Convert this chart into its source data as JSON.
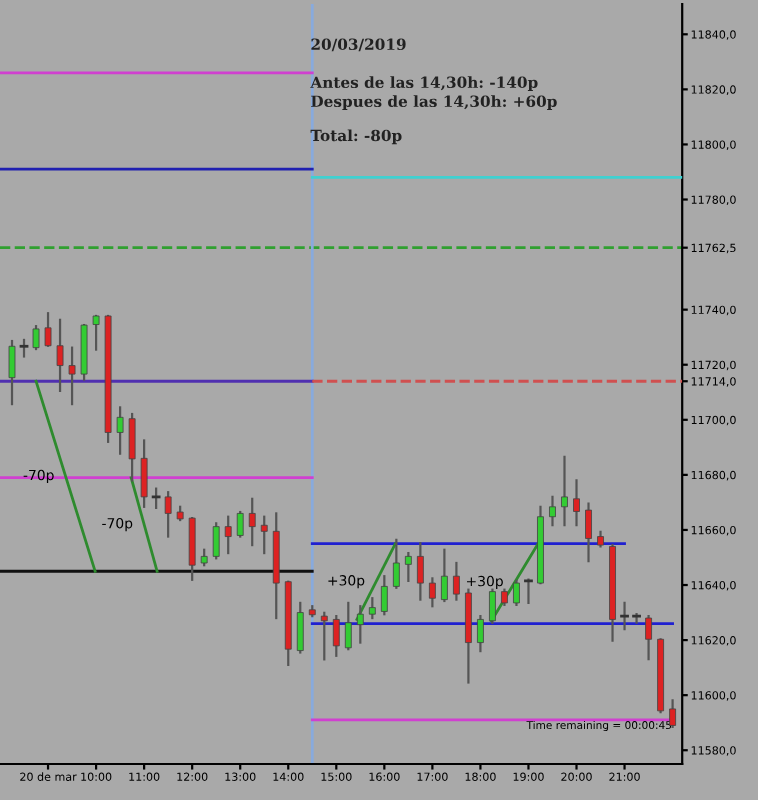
{
  "chart_data": {
    "type": "candlestick",
    "x": [
      8.25,
      8.5,
      8.75,
      9,
      9.25,
      9.5,
      9.75,
      10,
      10.25,
      10.5,
      10.75,
      11,
      11.25,
      11.5,
      11.75,
      12,
      12.25,
      12.5,
      12.75,
      13,
      13.25,
      13.5,
      13.75,
      14,
      14.25,
      14.5,
      14.75,
      15,
      15.25,
      15.5,
      15.75,
      16,
      16.25,
      16.5,
      16.75,
      17,
      17.25,
      17.5,
      17.75,
      18,
      18.25,
      18.5,
      18.75,
      19,
      19.25,
      19.5,
      19.75,
      20,
      20.25,
      20.5,
      20.75,
      21,
      21.25,
      21.5,
      21.75,
      22
    ],
    "ohlc": [
      [
        11715.3,
        11728.6,
        11705.7,
        11726.7
      ],
      [
        11726.7,
        11729,
        11723,
        11726.7
      ],
      [
        11726.2,
        11734,
        11725.7,
        11733
      ],
      [
        11733.4,
        11738.7,
        11726.9,
        11726.9
      ],
      [
        11726.9,
        11736.3,
        11710.5,
        11719.7
      ],
      [
        11719.7,
        11726.2,
        11705.7,
        11716.6
      ],
      [
        11716.6,
        11734.4,
        11714.6,
        11734.4
      ],
      [
        11734.6,
        11737.7,
        11725.5,
        11737.7
      ],
      [
        11737.7,
        11737.7,
        11692,
        11695.4
      ],
      [
        11695.4,
        11704.5,
        11687.7,
        11700.9
      ],
      [
        11700.4,
        11702.1,
        11678,
        11685.8
      ],
      [
        11686,
        11692.5,
        11668.4,
        11672
      ],
      [
        11672,
        11675,
        11668,
        11672
      ],
      [
        11672,
        11673.7,
        11657.6,
        11666
      ],
      [
        11666.5,
        11668.4,
        11663.6,
        11664
      ],
      [
        11664.3,
        11664.3,
        11641.9,
        11647.2
      ],
      [
        11648,
        11652.8,
        11647.2,
        11650.4
      ],
      [
        11650.4,
        11662.4,
        11649.7,
        11661.2
      ],
      [
        11661.2,
        11664.8,
        11651.6,
        11657.6
      ],
      [
        11658,
        11666.5,
        11657.6,
        11666
      ],
      [
        11666,
        11671.3,
        11654.5,
        11661.2
      ],
      [
        11661.7,
        11664.8,
        11651.6,
        11659.5
      ],
      [
        11659.5,
        11666,
        11628,
        11640.7
      ],
      [
        11641.2,
        11641.2,
        11611,
        11616.7
      ],
      [
        11616.2,
        11633.5,
        11615.5,
        11630
      ],
      [
        11631,
        11632.3,
        11628.7,
        11629.2
      ],
      [
        11628.7,
        11629.9,
        11613,
        11627
      ],
      [
        11627.5,
        11628.7,
        11614.3,
        11617.9
      ],
      [
        11617.2,
        11633.5,
        11616.7,
        11626.3
      ],
      [
        11625.6,
        11632.3,
        11619.1,
        11629.4
      ],
      [
        11629.4,
        11635.2,
        11628,
        11631.8
      ],
      [
        11630.4,
        11643.2,
        11629.4,
        11639.5
      ],
      [
        11639.5,
        11656.4,
        11639,
        11648
      ],
      [
        11647.5,
        11651.6,
        11641.5,
        11650.4
      ],
      [
        11650.4,
        11655.2,
        11634.7,
        11640.7
      ],
      [
        11640.7,
        11642.4,
        11632.3,
        11635.2
      ],
      [
        11634.7,
        11652.8,
        11634.2,
        11643.2
      ],
      [
        11643.2,
        11648,
        11634.7,
        11636.7
      ],
      [
        11637.1,
        11638.3,
        11604.6,
        11619.1
      ],
      [
        11619.1,
        11628.7,
        11616,
        11627.5
      ],
      [
        11627,
        11638.3,
        11626.3,
        11637.6
      ],
      [
        11637.6,
        11638.3,
        11632.8,
        11633.5
      ],
      [
        11633.5,
        11641.5,
        11632.8,
        11640.7
      ],
      [
        11641.5,
        11642,
        11633.5,
        11641.5
      ],
      [
        11640.7,
        11668.4,
        11640.7,
        11664.8
      ],
      [
        11664.8,
        11672,
        11661.7,
        11668.4
      ],
      [
        11668.4,
        11686.5,
        11661.7,
        11672
      ],
      [
        11671.3,
        11678,
        11661.7,
        11666.7
      ],
      [
        11667.2,
        11669.6,
        11648.7,
        11656.9
      ],
      [
        11657.6,
        11659.3,
        11654,
        11654.5
      ],
      [
        11654,
        11654.5,
        11619.8,
        11627.5
      ],
      [
        11628.7,
        11633.5,
        11624,
        11628.7
      ],
      [
        11628.7,
        11629.4,
        11626.3,
        11628.7
      ],
      [
        11628,
        11628.7,
        11613.1,
        11620.3
      ],
      [
        11620.3,
        11620.3,
        11593.8,
        11594.3
      ],
      [
        11595,
        11598.1,
        11588.5,
        11589
      ]
    ],
    "colors": [
      "#33cc33",
      "#333333",
      "#33cc33",
      "#dd2222",
      "#dd2222",
      "#dd2222",
      "#33cc33",
      "#33cc33",
      "#dd2222",
      "#33cc33",
      "#dd2222",
      "#dd2222",
      "#333333",
      "#dd2222",
      "#dd2222",
      "#dd2222",
      "#33cc33",
      "#33cc33",
      "#dd2222",
      "#33cc33",
      "#dd2222",
      "#dd2222",
      "#dd2222",
      "#dd2222",
      "#33cc33",
      "#dd2222",
      "#dd2222",
      "#dd2222",
      "#33cc33",
      "#33cc33",
      "#33cc33",
      "#33cc33",
      "#33cc33",
      "#33cc33",
      "#dd2222",
      "#dd2222",
      "#33cc33",
      "#dd2222",
      "#dd2222",
      "#33cc33",
      "#33cc33",
      "#dd2222",
      "#33cc33",
      "#333333",
      "#33cc33",
      "#33cc33",
      "#33cc33",
      "#dd2222",
      "#dd2222",
      "#dd2222",
      "#dd2222",
      "#333333",
      "#333333",
      "#dd2222",
      "#dd2222",
      "#dd2222"
    ],
    "series": [
      {
        "type": "line",
        "color": "#d040d0",
        "x": [
          8.0,
          14.5
        ],
        "values": [
          11826,
          11826
        ]
      },
      {
        "type": "line",
        "color": "#2020b0",
        "x": [
          8.0,
          14.5
        ],
        "values": [
          11791,
          11791
        ]
      },
      {
        "type": "line",
        "color": "#5030b0",
        "x": [
          8.0,
          14.5
        ],
        "values": [
          11714,
          11714
        ]
      },
      {
        "type": "line",
        "color": "#d040d0",
        "x": [
          8.0,
          14.5
        ],
        "values": [
          11679,
          11679
        ]
      },
      {
        "type": "line",
        "color": "#111111",
        "x": [
          8.0,
          14.5
        ],
        "values": [
          11645,
          11645
        ]
      },
      {
        "type": "line",
        "color": "#40d0d0",
        "x": [
          14.5,
          22.2
        ],
        "values": [
          11788,
          11788
        ]
      },
      {
        "type": "line",
        "color": "#d05050",
        "line_style": "dashed",
        "x": [
          14.5,
          22.2
        ],
        "values": [
          11714,
          11714
        ]
      },
      {
        "type": "line",
        "color": "#2020d0",
        "x": [
          14.5,
          21.0
        ],
        "values": [
          11655,
          11655
        ]
      },
      {
        "type": "line",
        "color": "#2020d0",
        "x": [
          14.5,
          22.0
        ],
        "values": [
          11626,
          11626
        ]
      },
      {
        "type": "line",
        "color": "#d040d0",
        "x": [
          14.5,
          22.0
        ],
        "values": [
          11591,
          11591
        ]
      },
      {
        "type": "line",
        "color": "#2e8b2e",
        "x": [
          8.75,
          9.98
        ],
        "values": [
          11714,
          11645
        ]
      },
      {
        "type": "line",
        "color": "#2e8b2e",
        "x": [
          10.73,
          11.27
        ],
        "values": [
          11679,
          11645
        ]
      },
      {
        "type": "line",
        "color": "#2e8b2e",
        "x": [
          15.43,
          16.23
        ],
        "values": [
          11627.5,
          11655
        ]
      },
      {
        "type": "line",
        "color": "#2e8b2e",
        "x": [
          18.23,
          19.2
        ],
        "values": [
          11627,
          11655
        ]
      }
    ],
    "ref_lines": [
      {
        "axis": "y",
        "value": 11762.5,
        "color": "#30a030",
        "line_style": "dashed"
      },
      {
        "axis": "x",
        "value": 14.5,
        "color": "#88aadd"
      }
    ],
    "annotations": [
      {
        "text": "-70p",
        "x": 9.365,
        "y": 11679.5
      },
      {
        "text": "-70p",
        "x": 11.0,
        "y": 11662
      },
      {
        "text": "+30p",
        "x": 15.83,
        "y": 11641.25
      },
      {
        "text": "+30p",
        "x": 18.715,
        "y": 11641
      },
      "20/03/2019",
      "Antes de las 14,30h: -140p",
      "Despues de las 14,30h: +60p",
      "Total: -80p",
      "Time remaining = 00:00:45"
    ],
    "xlim": [
      8.0,
      22.2
    ],
    "ylim": [
      11575,
      11851
    ],
    "xticks": [
      {
        "value": 9,
        "label": "20 de mar"
      },
      {
        "value": 10,
        "label": "10:00"
      },
      {
        "value": 11,
        "label": "11:00"
      },
      {
        "value": 12,
        "label": "12:00"
      },
      {
        "value": 13,
        "label": "13:00"
      },
      {
        "value": 14,
        "label": "14:00"
      },
      {
        "value": 15,
        "label": "15:00"
      },
      {
        "value": 16,
        "label": "16:00"
      },
      {
        "value": 17,
        "label": "17:00"
      },
      {
        "value": 18,
        "label": "18:00"
      },
      {
        "value": 19,
        "label": "19:00"
      },
      {
        "value": 20,
        "label": "20:00"
      },
      {
        "value": 21,
        "label": "21:00"
      }
    ],
    "yticks": [
      {
        "value": 11580,
        "label": "11580,0"
      },
      {
        "value": 11600,
        "label": "11600,0"
      },
      {
        "value": 11620,
        "label": "11620,0"
      },
      {
        "value": 11640,
        "label": "11640,0"
      },
      {
        "value": 11660,
        "label": "11660,0"
      },
      {
        "value": 11680,
        "label": "11680,0"
      },
      {
        "value": 11700,
        "label": "11700,0"
      },
      {
        "value": 11714,
        "label": "11714,0"
      },
      {
        "value": 11720,
        "label": "11720,0"
      },
      {
        "value": 11740,
        "label": "11740,0"
      },
      {
        "value": 11762.5,
        "label": "11762,5"
      },
      {
        "value": 11780,
        "label": "11780,0"
      },
      {
        "value": 11800,
        "label": "11800,0"
      },
      {
        "value": 11820,
        "label": "11820,0"
      },
      {
        "value": 11840,
        "label": "11840,0"
      }
    ],
    "grid": false,
    "legend": false
  }
}
